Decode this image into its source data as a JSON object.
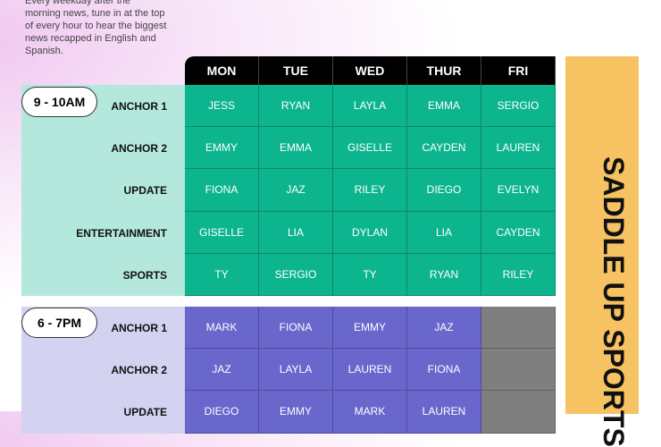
{
  "intro": "Every weekday after the morning news, tune in at the top of every hour to hear the biggest news recapped in English and Spanish.",
  "days": [
    "MON",
    "TUE",
    "WED",
    "THUR",
    "FRI"
  ],
  "banner": "SADDLE UP SPORTS",
  "colors": {
    "morning_cell": "#0db58f",
    "morning_bg": "#b4e8dd",
    "evening_cell": "#6966cc",
    "evening_bg": "#d3d3f1",
    "empty_cell": "#7f7f7f",
    "banner": "#f6c262"
  },
  "sections": [
    {
      "time": "9 - 10AM",
      "rows": [
        {
          "label": "ANCHOR 1",
          "cells": [
            "JESS",
            "RYAN",
            "LAYLA",
            "EMMA",
            "SERGIO"
          ]
        },
        {
          "label": "ANCHOR 2",
          "cells": [
            "EMMY",
            "EMMA",
            "GISELLE",
            "CAYDEN",
            "LAUREN"
          ]
        },
        {
          "label": "UPDATE",
          "cells": [
            "FIONA",
            "JAZ",
            "RILEY",
            "DIEGO",
            "EVELYN"
          ]
        },
        {
          "label": "ENTERTAINMENT",
          "cells": [
            "GISELLE",
            "LIA",
            "DYLAN",
            "LIA",
            "CAYDEN"
          ]
        },
        {
          "label": "SPORTS",
          "cells": [
            "TY",
            "SERGIO",
            "TY",
            "RYAN",
            "RILEY"
          ]
        }
      ]
    },
    {
      "time": "6 - 7PM",
      "rows": [
        {
          "label": "ANCHOR 1",
          "cells": [
            "MARK",
            "FIONA",
            "EMMY",
            "JAZ",
            ""
          ]
        },
        {
          "label": "ANCHOR 2",
          "cells": [
            "JAZ",
            "LAYLA",
            "LAUREN",
            "FIONA",
            ""
          ]
        },
        {
          "label": "UPDATE",
          "cells": [
            "DIEGO",
            "EMMY",
            "MARK",
            "LAUREN",
            ""
          ]
        }
      ]
    }
  ]
}
